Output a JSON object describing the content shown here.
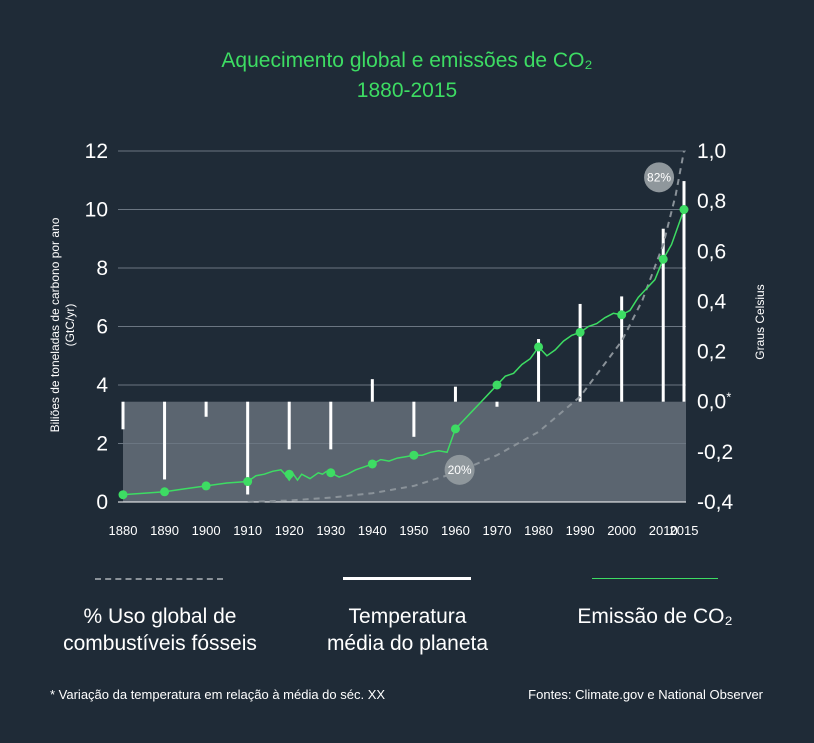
{
  "title_line1": "Aquecimento global e emissões de CO₂",
  "title_line2": "1880-2015",
  "left_axis_label_line1": "Biliões de toneladas de carbono por ano",
  "left_axis_label_line2": "(GtC/yr)",
  "right_axis_label": "Graus Celsius",
  "colors": {
    "background": "#1f2b37",
    "accent_green": "#3ddc63",
    "temp_band": "#5b6570",
    "fossil_line": "#8a9299",
    "bubble": "#8f979c"
  },
  "legend": {
    "fossil": {
      "line1": "% Uso global de",
      "line2": "combustíveis fósseis"
    },
    "temperature": {
      "line1": "Temperatura",
      "line2": "média do planeta"
    },
    "co2": {
      "label": "Emissão de CO₂"
    }
  },
  "footnote": "* Variação da temperatura em relação à média do séc. XX",
  "sources": "Fontes: Climate.gov e National Observer",
  "chart_data": {
    "type": "line",
    "title": "Aquecimento global e emissões de CO₂ 1880-2015",
    "categories": [
      "1880",
      "1890",
      "1900",
      "1910",
      "1920",
      "1930",
      "1940",
      "1950",
      "1960",
      "1970",
      "1980",
      "1990",
      "2000",
      "2010",
      "2015"
    ],
    "left_axis": {
      "label": "Biliões de toneladas de carbono por ano (GtC/yr)",
      "ylim": [
        0,
        12
      ],
      "ticks": [
        "0",
        "2",
        "4",
        "6",
        "8",
        "10",
        "12"
      ]
    },
    "right_axis": {
      "label": "Graus Celsius",
      "ylim": [
        -0.4,
        1.0
      ],
      "ticks": [
        "1,0",
        "0,8",
        "0,6",
        "0,4",
        "0,2",
        "0,0*",
        "-0,2",
        "-0,4"
      ]
    },
    "series": [
      {
        "name": "Emissão de CO₂",
        "axis": "left",
        "markers": {
          "x": [
            1880,
            1890,
            1900,
            1910,
            1920,
            1930,
            1940,
            1950,
            1960,
            1970,
            1980,
            1990,
            2000,
            2010,
            2015
          ],
          "y": [
            0.25,
            0.35,
            0.55,
            0.7,
            0.95,
            1.0,
            1.3,
            1.6,
            2.5,
            4.0,
            5.3,
            5.8,
            6.4,
            8.3,
            10.0
          ]
        },
        "line": {
          "x": [
            1880,
            1885,
            1890,
            1895,
            1900,
            1905,
            1910,
            1912,
            1914,
            1916,
            1918,
            1919,
            1920,
            1921,
            1922,
            1923,
            1925,
            1927,
            1928,
            1929,
            1930,
            1932,
            1934,
            1936,
            1938,
            1940,
            1942,
            1944,
            1946,
            1948,
            1950,
            1952,
            1954,
            1956,
            1958,
            1960,
            1962,
            1964,
            1966,
            1968,
            1970,
            1972,
            1974,
            1976,
            1978,
            1980,
            1982,
            1984,
            1986,
            1988,
            1990,
            1992,
            1994,
            1996,
            1998,
            2000,
            2002,
            2004,
            2006,
            2008,
            2010,
            2012,
            2015
          ],
          "y": [
            0.25,
            0.3,
            0.35,
            0.45,
            0.55,
            0.65,
            0.7,
            0.9,
            0.95,
            1.05,
            1.1,
            0.95,
            0.75,
            0.95,
            0.75,
            0.95,
            0.8,
            1.0,
            0.95,
            1.05,
            1.0,
            0.85,
            0.95,
            1.1,
            1.2,
            1.3,
            1.45,
            1.4,
            1.5,
            1.55,
            1.6,
            1.6,
            1.7,
            1.75,
            1.7,
            2.5,
            2.8,
            3.1,
            3.4,
            3.7,
            4.0,
            4.3,
            4.4,
            4.7,
            4.9,
            5.3,
            5.0,
            5.2,
            5.5,
            5.7,
            5.8,
            6.0,
            6.1,
            6.3,
            6.45,
            6.4,
            6.55,
            7.0,
            7.3,
            7.6,
            8.3,
            8.8,
            10.0
          ]
        }
      },
      {
        "name": "Temperatura média do planeta",
        "axis": "right",
        "type": "bar",
        "x": [
          1880,
          1890,
          1900,
          1910,
          1920,
          1930,
          1940,
          1950,
          1960,
          1970,
          1980,
          1990,
          2000,
          2010,
          2015
        ],
        "values": [
          -0.11,
          -0.31,
          -0.06,
          -0.37,
          -0.19,
          -0.19,
          0.09,
          -0.14,
          0.06,
          -0.02,
          0.25,
          0.39,
          0.42,
          0.69,
          0.88
        ]
      },
      {
        "name": "% Uso global de combustíveis fósseis",
        "type": "dashed-line",
        "axis": "left",
        "x": [
          1910,
          1920,
          1930,
          1940,
          1950,
          1960,
          1970,
          1980,
          1990,
          2000,
          2005,
          2010,
          2013,
          2015
        ],
        "y": [
          0.0,
          0.05,
          0.15,
          0.3,
          0.55,
          1.0,
          1.6,
          2.4,
          3.6,
          5.5,
          6.9,
          8.8,
          10.5,
          12.0
        ]
      }
    ],
    "annotations": [
      {
        "text": "20%",
        "x": 1961,
        "y": 1.1,
        "axis": "left"
      },
      {
        "text": "82%",
        "x": 2009,
        "y": 11.1,
        "axis": "left"
      }
    ],
    "temperature_baseline": {
      "right_value": 0.0,
      "band_range": [
        -0.4,
        0.0
      ]
    }
  }
}
